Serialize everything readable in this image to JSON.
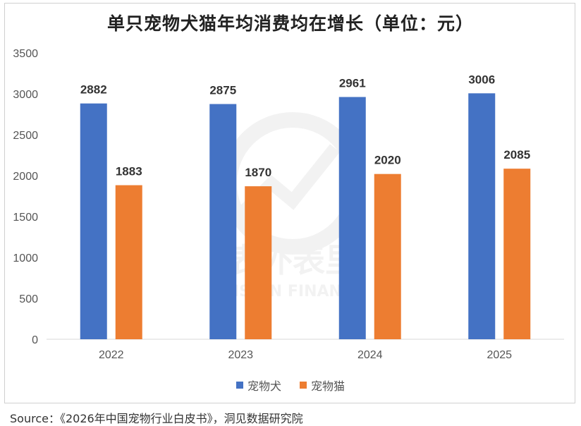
{
  "chart_data": {
    "type": "bar",
    "title": "单只宠物犬猫年均消费均在增长（单位：元）",
    "categories": [
      "2022",
      "2023",
      "2024",
      "2025"
    ],
    "series": [
      {
        "name": "宠物犬",
        "values": [
          2882,
          2875,
          2961,
          3006
        ],
        "color": "#4472C4"
      },
      {
        "name": "宠物猫",
        "values": [
          1883,
          1870,
          2020,
          2085
        ],
        "color": "#ED7D31"
      }
    ],
    "ylim": [
      0,
      3500
    ],
    "yticks": [
      "0",
      "500",
      "1000",
      "1500",
      "2000",
      "2500",
      "3000",
      "3500"
    ],
    "grid": false,
    "legend_position": "bottom",
    "data_labels": true
  },
  "source": "Source：《2026年中国宠物行业白皮书》，洞见数据研究院",
  "watermark": {
    "cn": "表外表里",
    "en": "VISION FINANCE"
  }
}
